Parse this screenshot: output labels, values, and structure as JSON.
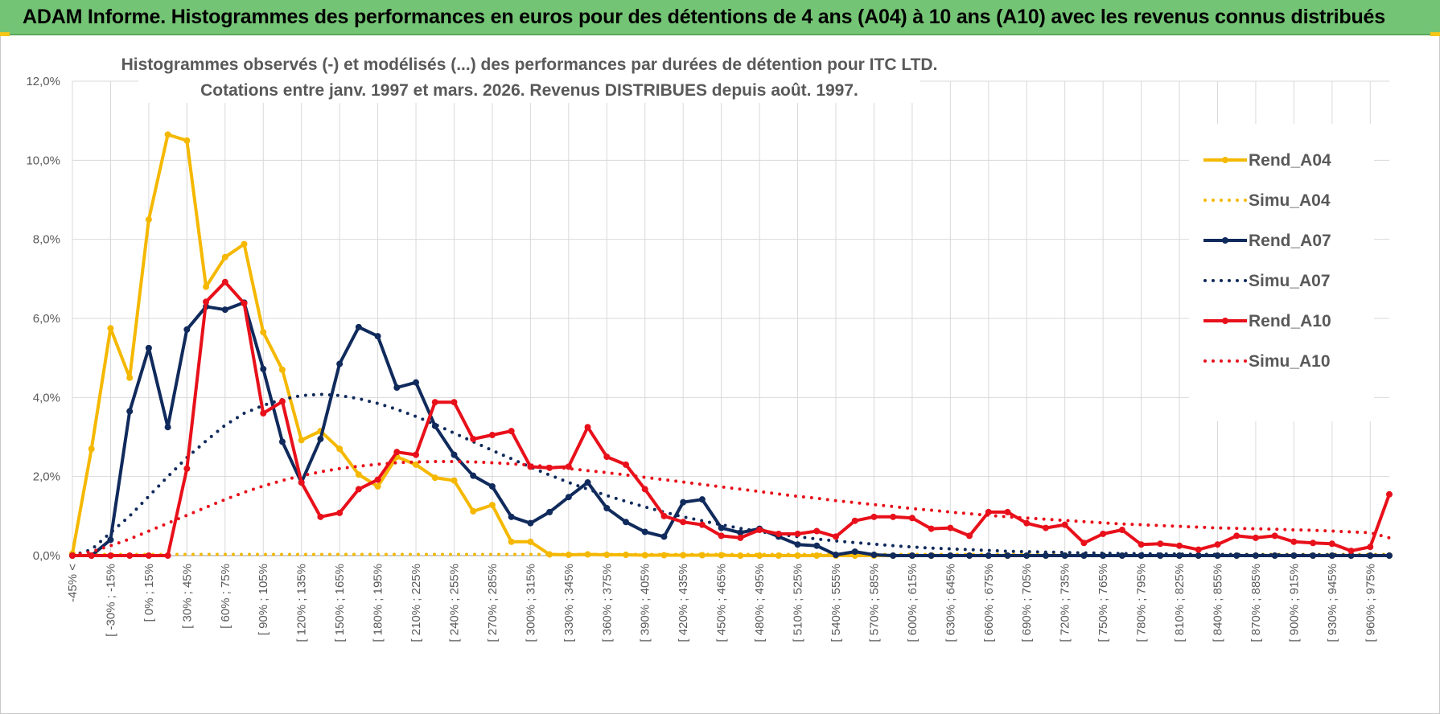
{
  "banner": {
    "title": "ADAM Informe. Histogrammes des performances en euros pour des détentions de 4 ans (A04) à 10 ans (A10) avec les revenus connus distribués"
  },
  "chart_data": {
    "type": "line",
    "title_line1": "Histogrammes observés (-) et modélisés (...) des performances par durées de détention pour ITC LTD.",
    "title_line2": "Cotations entre janv. 1997 et mars. 2026. Revenus DISTRIBUES depuis août. 1997.",
    "ylim": [
      0,
      12
    ],
    "y_ticks": [
      "0,0%",
      "2,0%",
      "4,0%",
      "6,0%",
      "8,0%",
      "10,0%",
      "12,0%"
    ],
    "legend_position": "right",
    "x_labels": [
      "-45% <",
      "[ -30% ; -15%",
      "[ 0% ; 15%",
      "[ 30% ; 45%",
      "[ 60% ; 75%",
      "[ 90% ; 105%",
      "[ 120% ; 135%",
      "[ 150% ; 165%",
      "[ 180% ; 195%",
      "[ 210% ; 225%",
      "[ 240% ; 255%",
      "[ 270% ; 285%",
      "[ 300% ; 315%",
      "[ 330% ; 345%",
      "[ 360% ; 375%",
      "[ 390% ; 405%",
      "[ 420% ; 435%",
      "[ 450% ; 465%",
      "[ 480% ; 495%",
      "[ 510% ; 525%",
      "[ 540% ; 555%",
      "[ 570% ; 585%",
      "[ 600% ; 615%",
      "[ 630% ; 645%",
      "[ 660% ; 675%",
      "[ 690% ; 705%",
      "[ 720% ; 735%",
      "[ 750% ; 765%",
      "[ 780% ; 795%",
      "[ 810% ; 825%",
      "[ 840% ; 855%",
      "[ 870% ; 885%",
      "[ 900% ; 915%",
      "[ 930% ; 945%",
      "[ 960% ; 975%"
    ],
    "series": [
      {
        "name": "Rend_A04",
        "color": "#f5b800",
        "style": "solid",
        "values": [
          0.05,
          2.7,
          5.75,
          4.5,
          8.5,
          10.65,
          10.5,
          6.8,
          7.55,
          7.88,
          5.65,
          4.7,
          2.92,
          3.15,
          2.7,
          2.05,
          1.75,
          2.5,
          2.3,
          1.97,
          1.9,
          1.12,
          1.28,
          0.35,
          0.35,
          0.03,
          0.02,
          0.03,
          0.02,
          0.02,
          0.01,
          0.01,
          0.01,
          0.01,
          0.01,
          0,
          0,
          0,
          0,
          0,
          0,
          0,
          0,
          0,
          0,
          0,
          0,
          0,
          0,
          0,
          0,
          0,
          0,
          0,
          0,
          0,
          0,
          0,
          0,
          0,
          0,
          0,
          0,
          0,
          0,
          0,
          0,
          0,
          0,
          0
        ]
      },
      {
        "name": "Simu_A04",
        "color": "#f5b800",
        "style": "dotted",
        "values": [
          0.02,
          0.03,
          0.03,
          0.03,
          0.03,
          0.03,
          0.03,
          0.03,
          0.03,
          0.03,
          0.03,
          0.03,
          0.03,
          0.03,
          0.03,
          0.03,
          0.03,
          0.03,
          0.03,
          0.03,
          0.03,
          0.03,
          0.03,
          0.03,
          0.03,
          0.03,
          0.03,
          0.03,
          0.03,
          0.03,
          0.03,
          0.03,
          0.03,
          0.03,
          0.03,
          0.03,
          0.03,
          0.03,
          0.03,
          0.03,
          0.03,
          0.03,
          0.03,
          0.03,
          0.03,
          0.03,
          0.03,
          0.03,
          0.03,
          0.03,
          0.03,
          0.03,
          0.03,
          0.03,
          0.03,
          0.03,
          0.03,
          0.03,
          0.03,
          0.03,
          0.03,
          0.03,
          0.03,
          0.03,
          0.03,
          0.03,
          0.03,
          0.03,
          0.03,
          0.03
        ]
      },
      {
        "name": "Rend_A07",
        "color": "#102a5c",
        "style": "solid",
        "values": [
          0,
          0,
          0.4,
          3.65,
          5.25,
          3.25,
          5.72,
          6.3,
          6.22,
          6.4,
          4.72,
          2.88,
          1.85,
          2.95,
          4.85,
          5.78,
          5.55,
          4.25,
          4.38,
          3.28,
          2.55,
          2.02,
          1.75,
          0.98,
          0.82,
          1.1,
          1.48,
          1.85,
          1.2,
          0.85,
          0.6,
          0.48,
          1.35,
          1.42,
          0.7,
          0.58,
          0.68,
          0.48,
          0.28,
          0.25,
          0.02,
          0.1,
          0.02,
          0,
          0,
          0,
          0,
          0,
          0,
          0,
          0,
          0,
          0,
          0,
          0,
          0,
          0,
          0,
          0,
          0,
          0,
          0,
          0,
          0,
          0,
          0,
          0,
          0,
          0,
          0
        ]
      },
      {
        "name": "Simu_A07",
        "color": "#102a5c",
        "style": "dotted",
        "values": [
          0,
          0.15,
          0.58,
          1.0,
          1.5,
          2.0,
          2.48,
          2.9,
          3.3,
          3.6,
          3.8,
          3.95,
          4.05,
          4.08,
          4.05,
          3.97,
          3.85,
          3.7,
          3.52,
          3.32,
          3.1,
          2.88,
          2.66,
          2.45,
          2.24,
          2.04,
          1.85,
          1.68,
          1.52,
          1.37,
          1.23,
          1.1,
          0.98,
          0.88,
          0.78,
          0.69,
          0.61,
          0.54,
          0.48,
          0.42,
          0.37,
          0.33,
          0.29,
          0.25,
          0.22,
          0.19,
          0.17,
          0.15,
          0.13,
          0.11,
          0.1,
          0.09,
          0.08,
          0.07,
          0.06,
          0.05,
          0.05,
          0.04,
          0.04,
          0.03,
          0.03,
          0.03,
          0.02,
          0.02,
          0.02,
          0.02,
          0.02,
          0.01,
          0.01,
          0.01
        ]
      },
      {
        "name": "Rend_A10",
        "color": "#e8101a",
        "style": "solid",
        "values": [
          0,
          0,
          0,
          0,
          0,
          0,
          2.2,
          6.42,
          6.92,
          6.38,
          3.6,
          3.9,
          1.85,
          0.98,
          1.08,
          1.68,
          1.92,
          2.62,
          2.55,
          3.88,
          3.88,
          2.95,
          3.05,
          3.15,
          2.25,
          2.22,
          2.25,
          3.25,
          2.5,
          2.3,
          1.68,
          1.0,
          0.85,
          0.78,
          0.5,
          0.45,
          0.65,
          0.55,
          0.55,
          0.62,
          0.48,
          0.88,
          0.98,
          0.98,
          0.95,
          0.68,
          0.7,
          0.5,
          1.1,
          1.1,
          0.82,
          0.7,
          0.78,
          0.32,
          0.55,
          0.65,
          0.28,
          0.3,
          0.25,
          0.15,
          0.28,
          0.5,
          0.45,
          0.5,
          0.35,
          0.32,
          0.3,
          0.12,
          0.22,
          1.55
        ]
      },
      {
        "name": "Simu_A10",
        "color": "#e8101a",
        "style": "dotted",
        "values": [
          0,
          0.1,
          0.25,
          0.42,
          0.62,
          0.82,
          1.02,
          1.22,
          1.42,
          1.6,
          1.76,
          1.9,
          2.02,
          2.12,
          2.2,
          2.26,
          2.31,
          2.35,
          2.37,
          2.38,
          2.38,
          2.37,
          2.35,
          2.32,
          2.29,
          2.25,
          2.2,
          2.15,
          2.1,
          2.04,
          1.98,
          1.92,
          1.86,
          1.8,
          1.74,
          1.68,
          1.62,
          1.56,
          1.5,
          1.45,
          1.39,
          1.34,
          1.29,
          1.24,
          1.19,
          1.15,
          1.1,
          1.06,
          1.02,
          0.98,
          0.95,
          0.92,
          0.89,
          0.86,
          0.83,
          0.8,
          0.78,
          0.76,
          0.74,
          0.72,
          0.7,
          0.69,
          0.68,
          0.67,
          0.65,
          0.64,
          0.62,
          0.6,
          0.58,
          0.45
        ]
      }
    ]
  }
}
